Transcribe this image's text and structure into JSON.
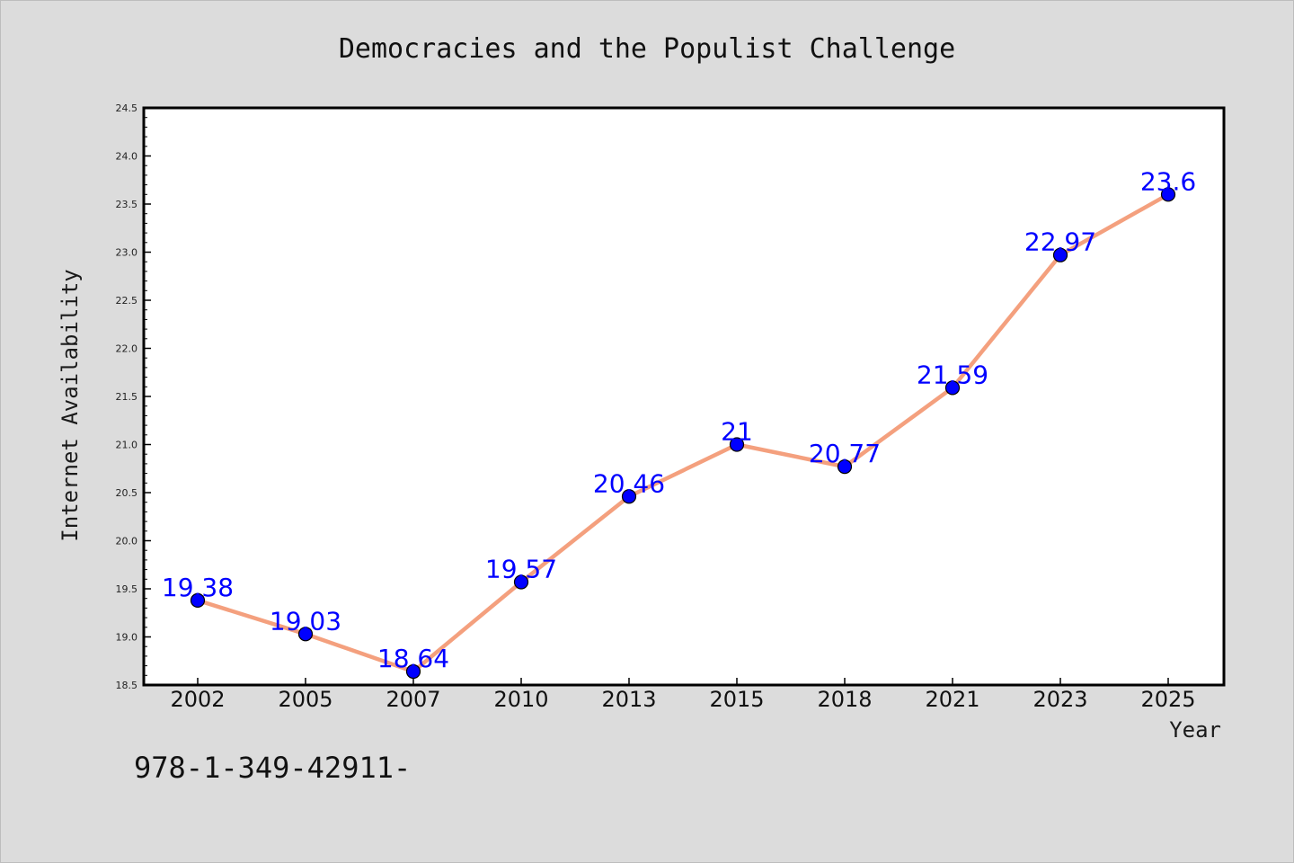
{
  "chart_data": {
    "type": "line",
    "title": "Democracies and the Populist Challenge",
    "xlabel": "Year",
    "ylabel": "Internet Availability",
    "categories": [
      "2002",
      "2005",
      "2007",
      "2010",
      "2013",
      "2015",
      "2018",
      "2021",
      "2023",
      "2025"
    ],
    "series": [
      {
        "values": [
          19.38,
          19.03,
          18.64,
          19.57,
          20.46,
          21,
          20.77,
          21.59,
          22.97,
          23.6
        ],
        "labels": [
          "19.38",
          "19.03",
          "18.64",
          "19.57",
          "20.46",
          "21",
          "20.77",
          "21.59",
          "22.97",
          "23.6"
        ],
        "line_color": "#f4a07e",
        "marker_color": "#0000ff"
      }
    ],
    "ylim": [
      18.5,
      24.5
    ],
    "yticks": [
      "18.5",
      "19.0",
      "19.5",
      "20.0",
      "20.5",
      "21.0",
      "21.5",
      "22.0",
      "22.5",
      "23.0",
      "23.5",
      "24.0",
      "24.5"
    ],
    "ytick_values": [
      18.5,
      19.0,
      19.5,
      20.0,
      20.5,
      21.0,
      21.5,
      22.0,
      22.5,
      23.0,
      23.5,
      24.0,
      24.5
    ],
    "minor_ytick_step": 0.1,
    "grid": false,
    "legend": "none"
  },
  "footnote": "978-1-349-42911-",
  "colors": {
    "background": "#dcdcdc",
    "plot_background": "#ffffff",
    "axes": "#000000"
  }
}
